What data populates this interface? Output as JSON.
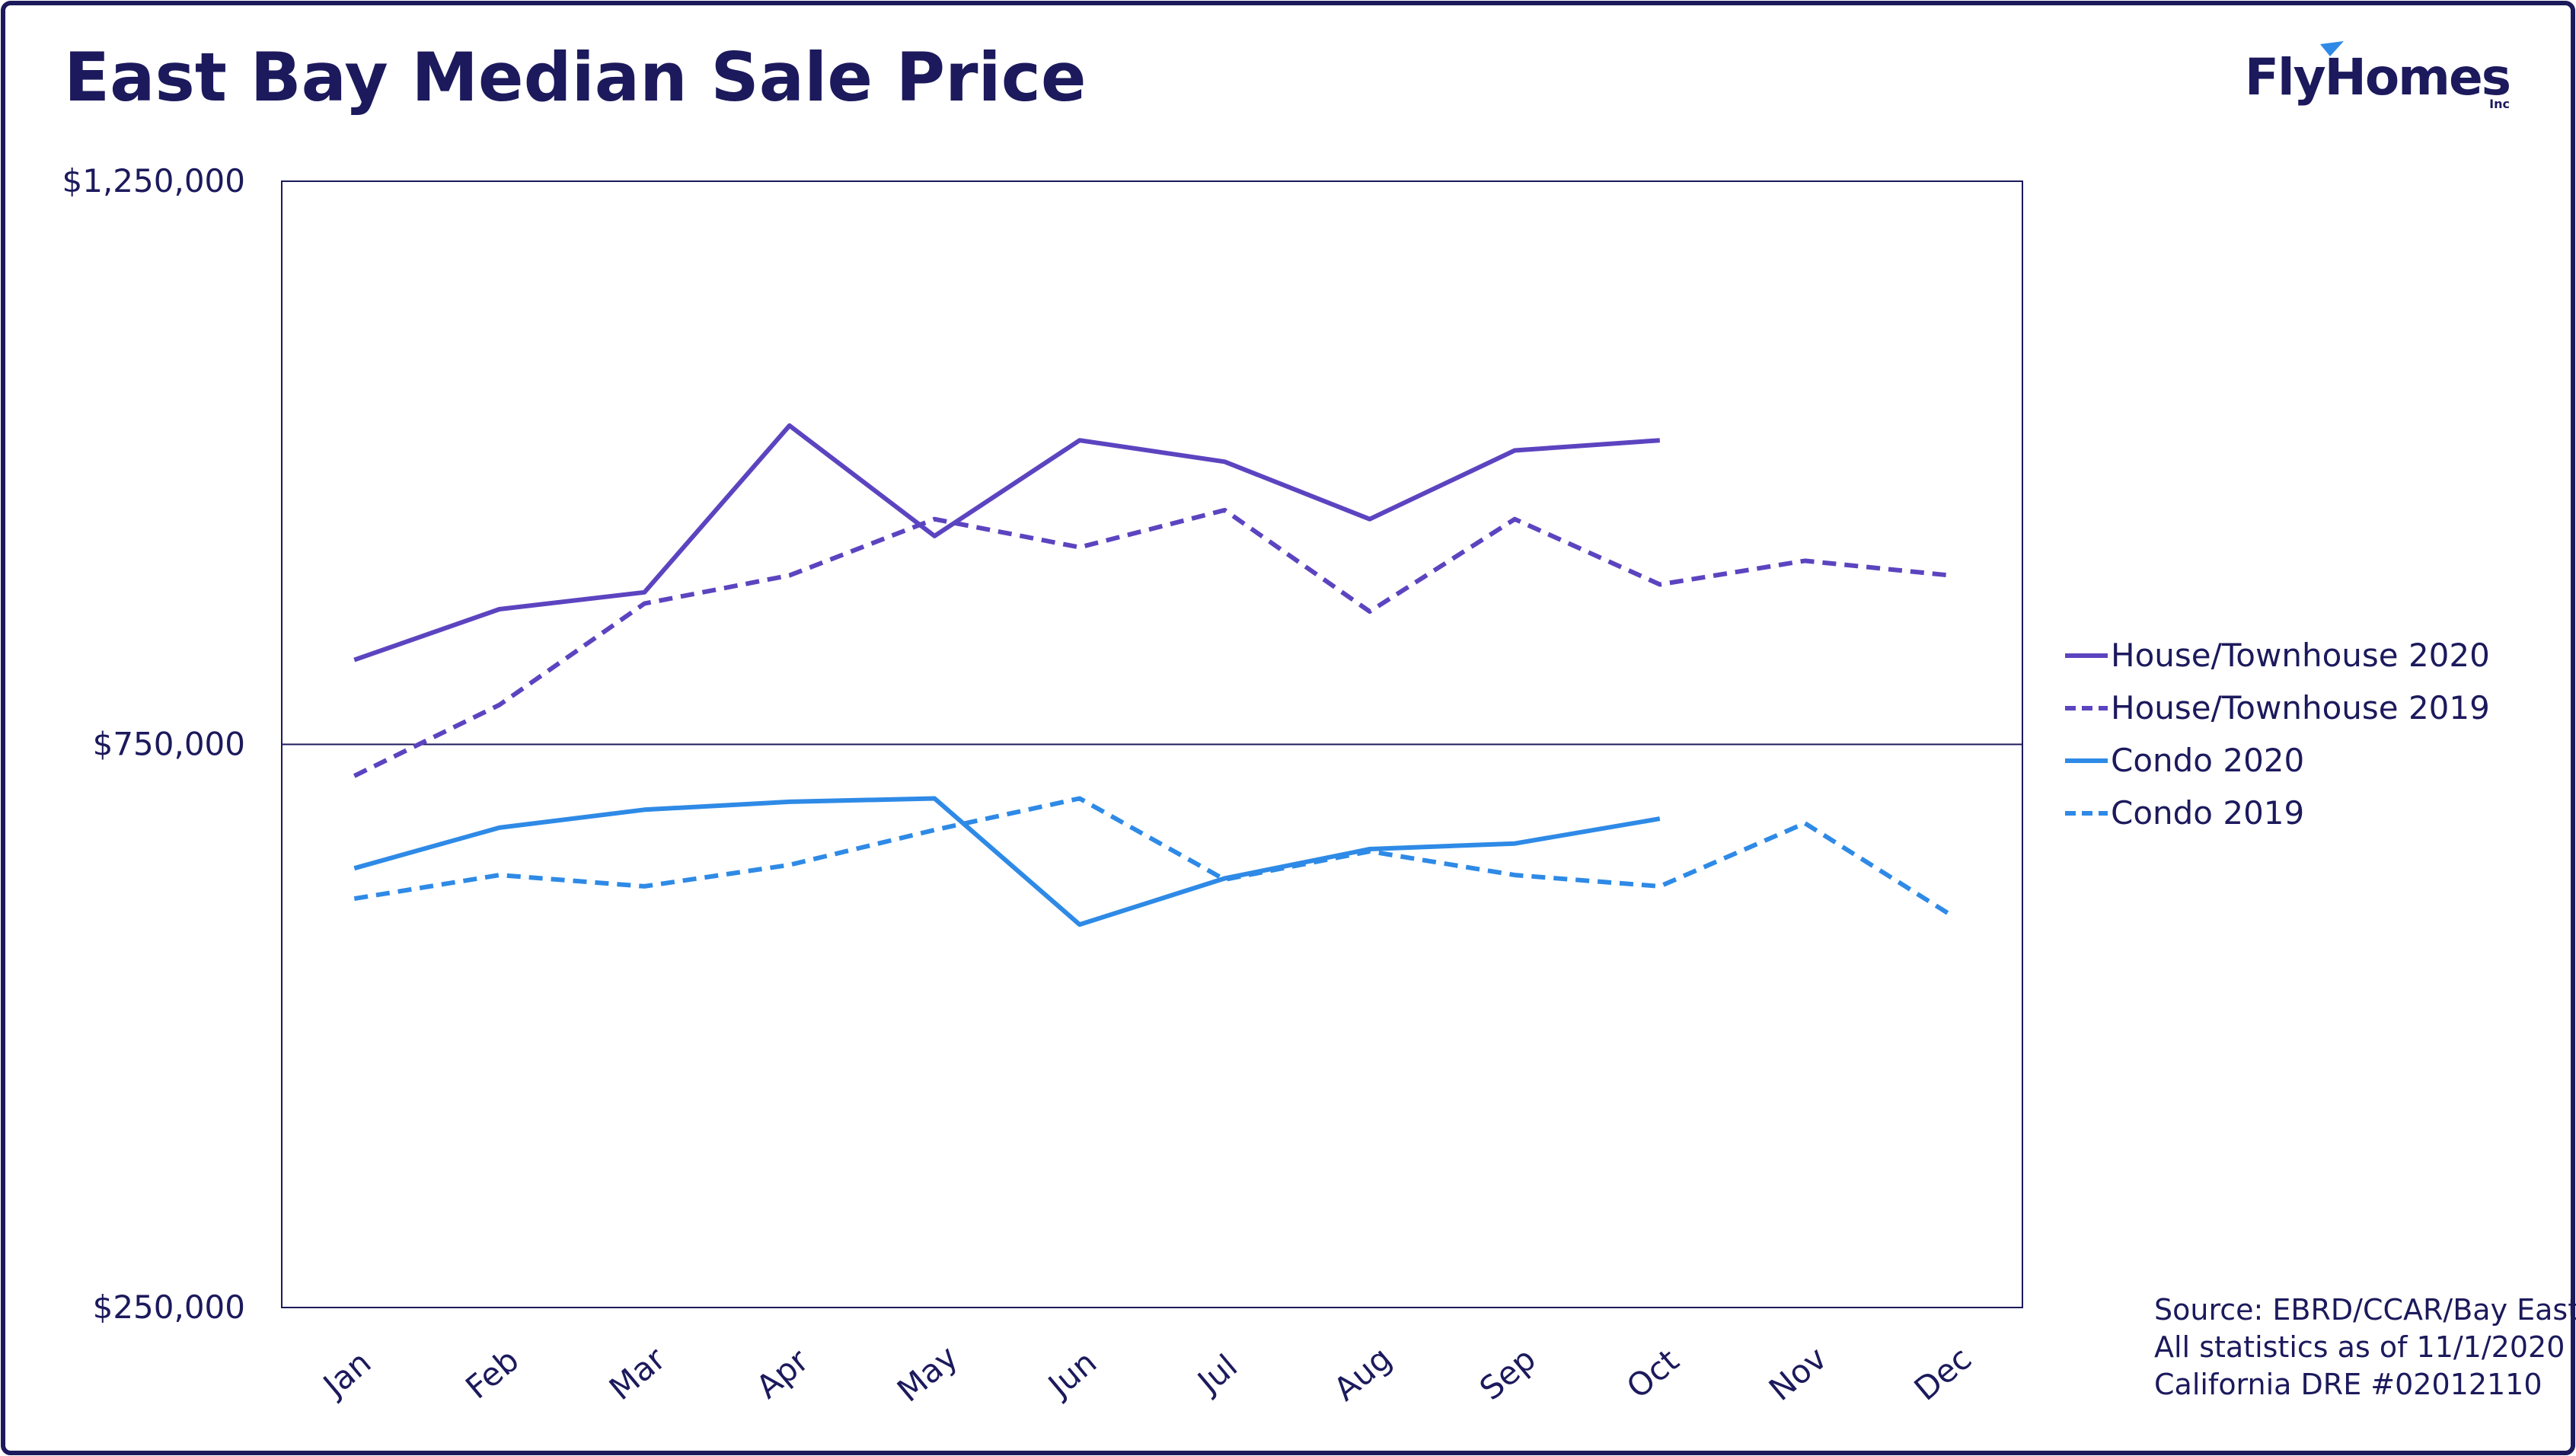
{
  "title": "East Bay Median Sale Price",
  "brand": {
    "name": "FlyHomes",
    "suffix": "Inc"
  },
  "source_lines": [
    "Source: EBRD/CCAR/Bay East",
    "All statistics as of 11/1/2020",
    "California DRE #02012110"
  ],
  "colors": {
    "frame": "#1c1a5c",
    "text": "#1c1a5c",
    "house": "#5c44c0",
    "condo": "#2e8ae6",
    "brand_accent": "#2e8ae6"
  },
  "chart_data": {
    "type": "line",
    "title": "East Bay Median Sale Price",
    "xlabel": "",
    "ylabel": "",
    "categories": [
      "Jan",
      "Feb",
      "Mar",
      "Apr",
      "May",
      "Jun",
      "Jul",
      "Aug",
      "Sep",
      "Oct",
      "Nov",
      "Dec"
    ],
    "ylim": [
      250000,
      1250000
    ],
    "yticks": [
      250000,
      750000,
      1250000
    ],
    "ytick_labels": [
      "$250,000",
      "$750,000",
      "$1,250,000"
    ],
    "grid": "horizontal line at $750,000",
    "legend_position": "right",
    "series": [
      {
        "name": "House/Townhouse 2020",
        "style": "solid",
        "color": "#5c44c0",
        "values": [
          825000,
          870000,
          885000,
          1033000,
          935000,
          1020000,
          1001000,
          950000,
          1011000,
          1020000,
          null,
          null
        ]
      },
      {
        "name": "House/Townhouse 2019",
        "style": "dashed",
        "color": "#5c44c0",
        "values": [
          722000,
          785000,
          875000,
          900000,
          950000,
          925000,
          958000,
          868000,
          950000,
          892000,
          913000,
          900000
        ]
      },
      {
        "name": "Condo 2020",
        "style": "solid",
        "color": "#2e8ae6",
        "values": [
          640000,
          676000,
          692000,
          699000,
          702000,
          590000,
          631000,
          657000,
          662000,
          684000,
          null,
          null
        ]
      },
      {
        "name": "Condo 2019",
        "style": "dashed",
        "color": "#2e8ae6",
        "values": [
          613000,
          634000,
          624000,
          643000,
          674000,
          702000,
          630000,
          655000,
          634000,
          624000,
          680000,
          599000
        ]
      }
    ]
  }
}
